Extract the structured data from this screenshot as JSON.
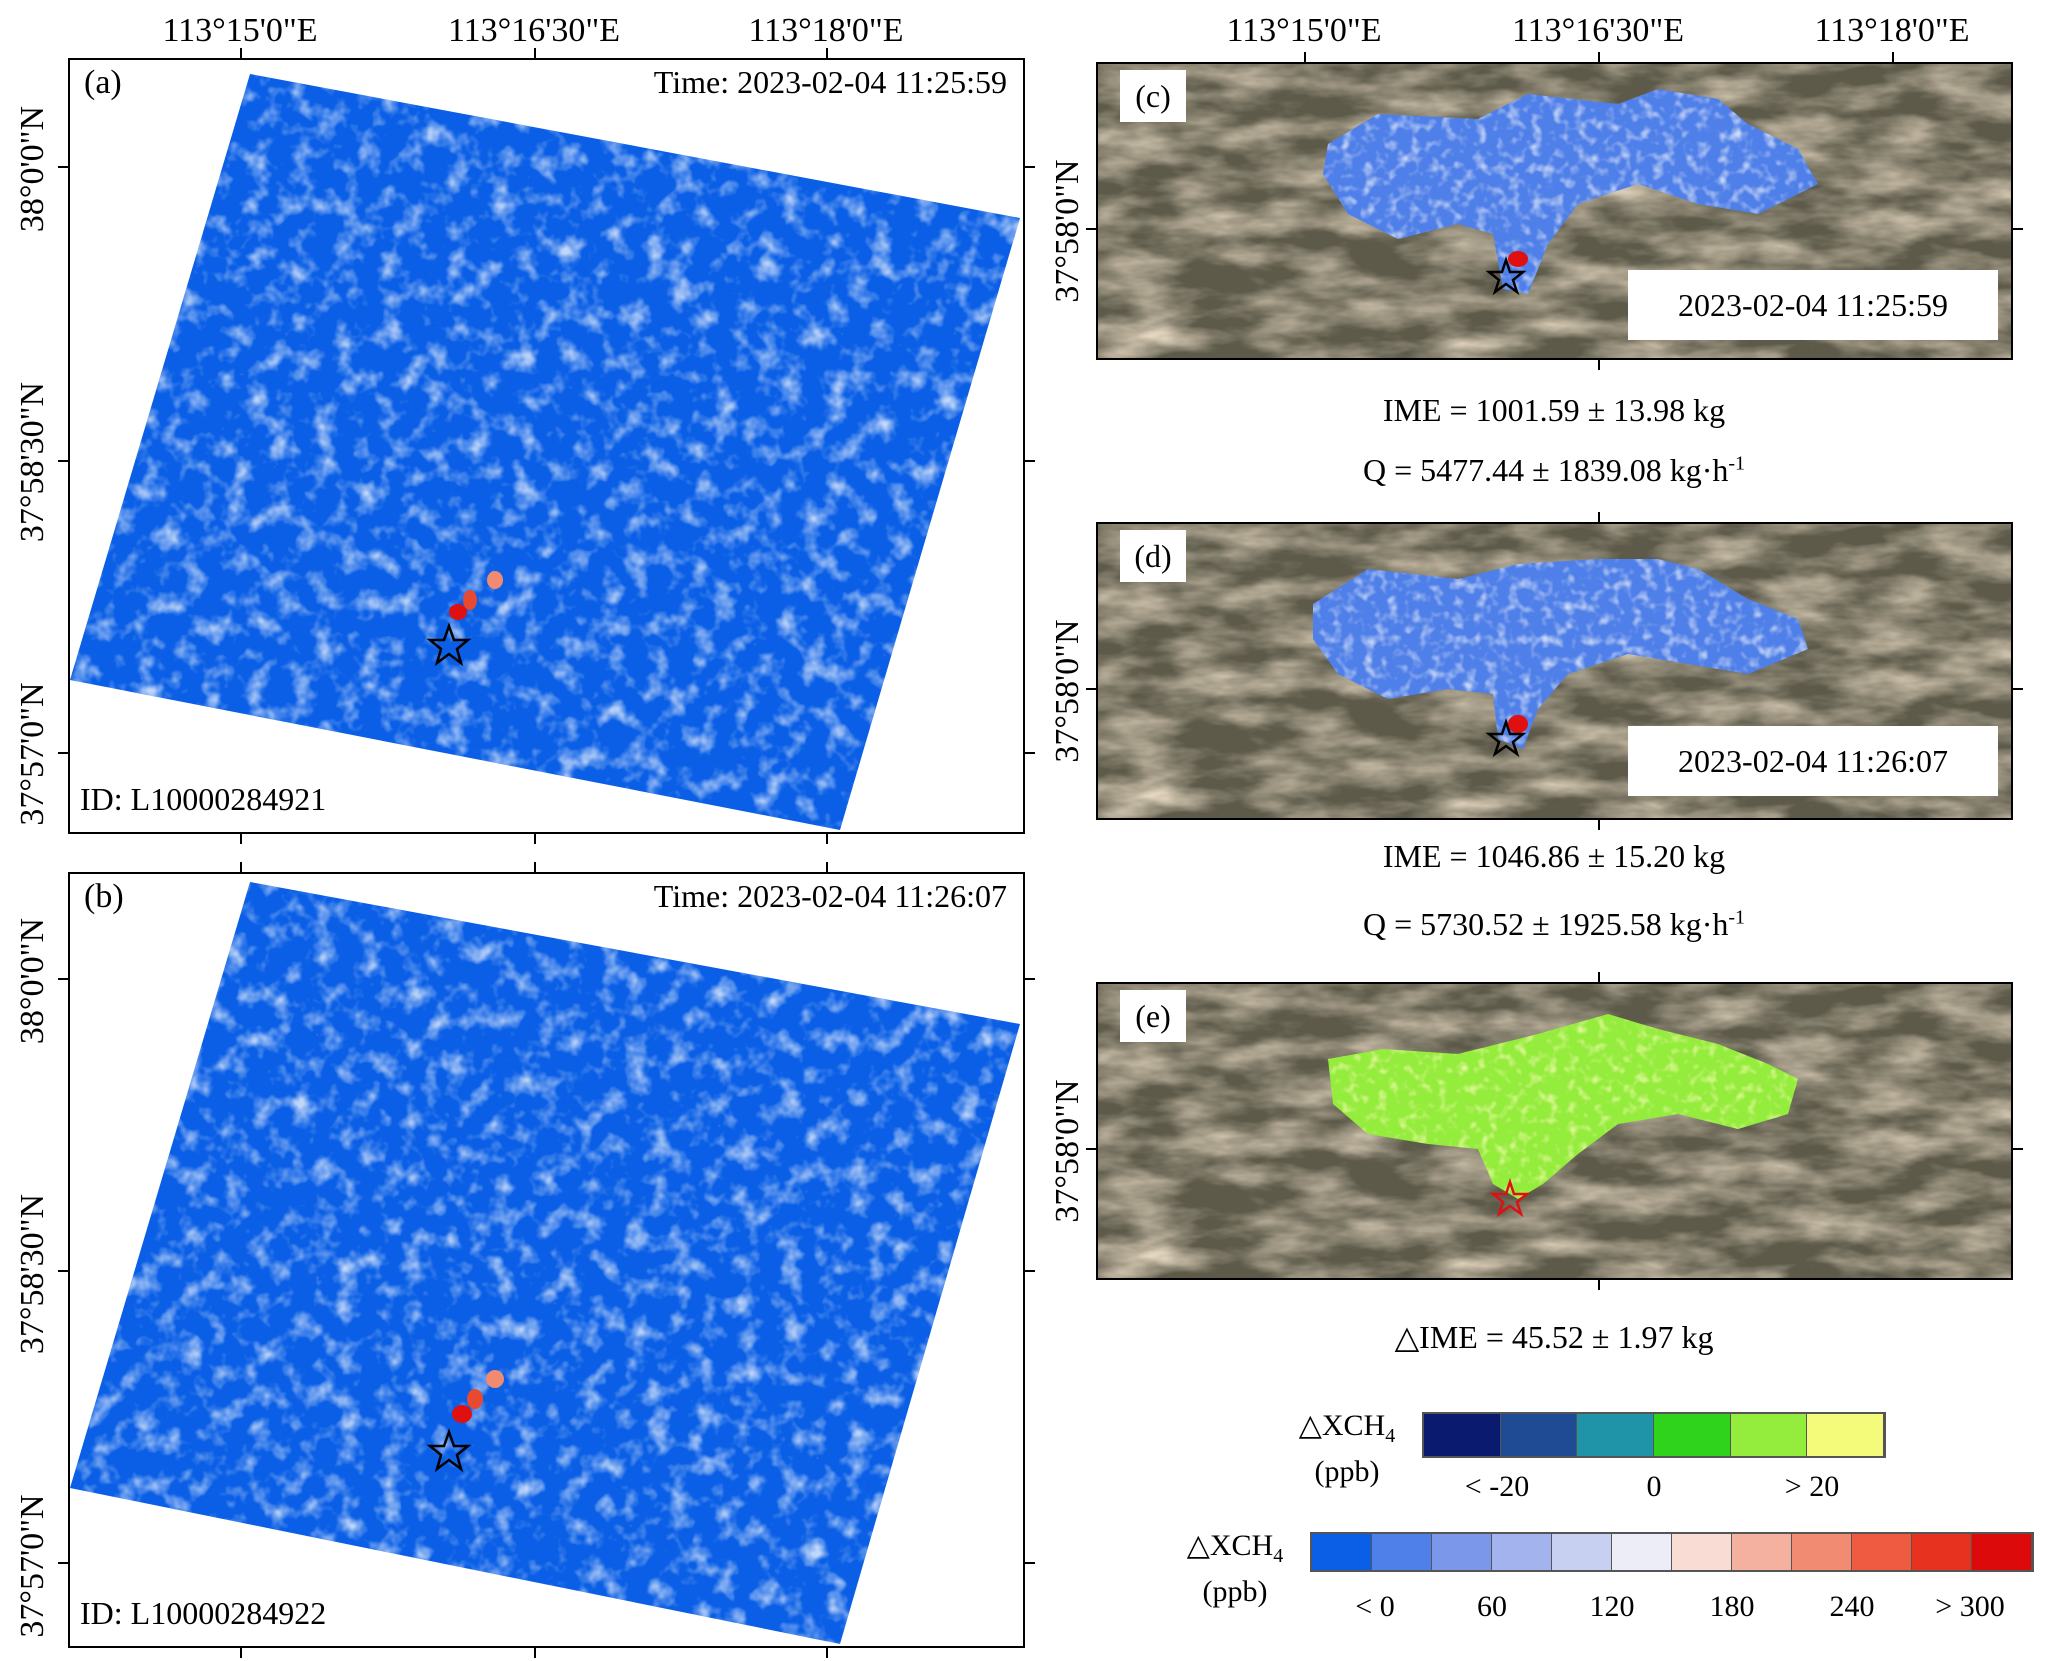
{
  "axes": {
    "lon_ticks": [
      "113°15'0\"E",
      "113°16'30\"E",
      "113°18'0\"E"
    ],
    "lat_ticks_left": [
      "38°0'0\"N",
      "37°58'30\"N",
      "37°57'0\"N"
    ],
    "lat_tick_right": "37°58'0\"N"
  },
  "panel_a": {
    "letter": "(a)",
    "time": "Time: 2023-02-04 11:25:59",
    "id": "ID: L10000284921"
  },
  "panel_b": {
    "letter": "(b)",
    "time": "Time: 2023-02-04 11:26:07",
    "id": "ID: L10000284922"
  },
  "panel_c": {
    "letter": "(c)",
    "stamp": "2023-02-04 11:25:59"
  },
  "panel_d": {
    "letter": "(d)",
    "stamp": "2023-02-04 11:26:07"
  },
  "panel_e": {
    "letter": "(e)"
  },
  "results_c": {
    "ime": "IME = 1001.59 ± 13.98 kg",
    "q": "Q = 5477.44 ± 1839.08 kg·h",
    "q_sup": "-1"
  },
  "results_d": {
    "ime": "IME = 1046.86 ± 15.20 kg",
    "q": "Q = 5730.52 ± 1925.58 kg·h",
    "q_sup": "-1"
  },
  "results_e": {
    "dime": "△IME = 45.52 ± 1.97 kg"
  },
  "colorbar_diff": {
    "title_main": "△XCH",
    "title_sub": "4",
    "unit": "(ppb)",
    "labels": [
      "< -20",
      "0",
      "> 20"
    ],
    "colors": [
      "#0a1a6e",
      "#1f4b94",
      "#1f93a8",
      "#2fd31c",
      "#94ec3c",
      "#f4fb7a"
    ]
  },
  "colorbar_main": {
    "title_main": "△XCH",
    "title_sub": "4",
    "unit": "(ppb)",
    "labels": [
      "< 0",
      "60",
      "120",
      "180",
      "240",
      "> 300"
    ],
    "colors": [
      "#0a5fe6",
      "#4f7fe8",
      "#7a97ea",
      "#a2b3ee",
      "#c8d0f2",
      "#ecedf7",
      "#f9ddd4",
      "#f5b1a0",
      "#f18c72",
      "#ee5b40",
      "#e7321f",
      "#dc0a0a"
    ]
  }
}
